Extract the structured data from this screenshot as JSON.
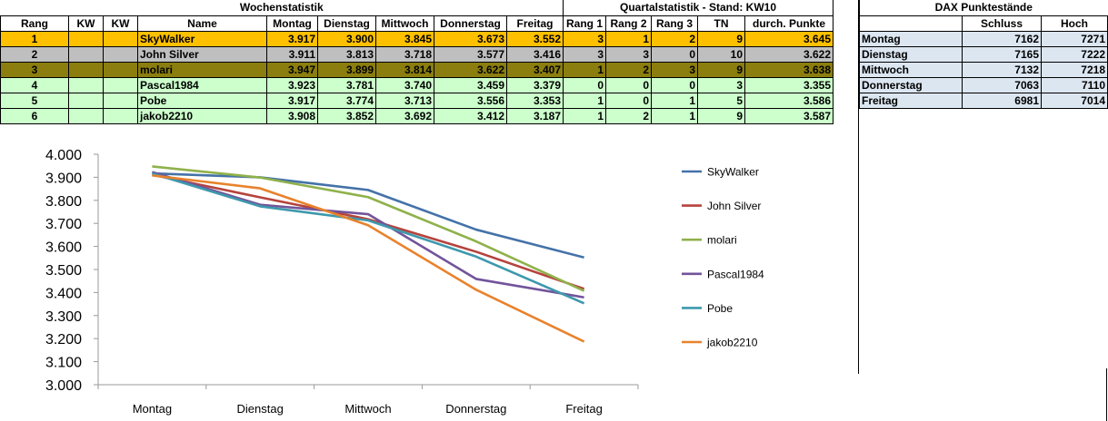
{
  "headers": {
    "weekly": "Wochenstatistik",
    "quarterly": "Quartalstatistik - Stand: KW10",
    "dax": "DAX Punktestände"
  },
  "columns": [
    "Rang",
    "KW",
    "KW",
    "Name",
    "Montag",
    "Dienstag",
    "Mittwoch",
    "Donnerstag",
    "Freitag",
    "Rang 1",
    "Rang 2",
    "Rang 3",
    "TN",
    "durch. Punkte"
  ],
  "rows": [
    {
      "rang": "1",
      "name": "SkyWalker",
      "mo": "3.917",
      "di": "3.900",
      "mi": "3.845",
      "do": "3.673",
      "fr": "3.552",
      "r1": "3",
      "r2": "1",
      "r3": "2",
      "tn": "9",
      "avg": "3.645",
      "bg": "#ffc000"
    },
    {
      "rang": "2",
      "name": "John Silver",
      "mo": "3.911",
      "di": "3.813",
      "mi": "3.718",
      "do": "3.577",
      "fr": "3.416",
      "r1": "3",
      "r2": "3",
      "r3": "0",
      "tn": "10",
      "avg": "3.622",
      "bg": "#bfbfbf"
    },
    {
      "rang": "3",
      "name": "molari",
      "mo": "3.947",
      "di": "3.899",
      "mi": "3.814",
      "do": "3.622",
      "fr": "3.407",
      "r1": "1",
      "r2": "2",
      "r3": "3",
      "tn": "9",
      "avg": "3.638",
      "bg": "#8b7e0e"
    },
    {
      "rang": "4",
      "name": "Pascal1984",
      "mo": "3.923",
      "di": "3.781",
      "mi": "3.740",
      "do": "3.459",
      "fr": "3.379",
      "r1": "0",
      "r2": "0",
      "r3": "0",
      "tn": "3",
      "avg": "3.355",
      "bg": "#ccffcc"
    },
    {
      "rang": "5",
      "name": "Pobe",
      "mo": "3.917",
      "di": "3.774",
      "mi": "3.713",
      "do": "3.556",
      "fr": "3.353",
      "r1": "1",
      "r2": "0",
      "r3": "1",
      "tn": "5",
      "avg": "3.586",
      "bg": "#ccffcc"
    },
    {
      "rang": "6",
      "name": "jakob2210",
      "mo": "3.908",
      "di": "3.852",
      "mi": "3.692",
      "do": "3.412",
      "fr": "3.187",
      "r1": "1",
      "r2": "2",
      "r3": "1",
      "tn": "9",
      "avg": "3.587",
      "bg": "#ccffcc"
    }
  ],
  "dax": {
    "columns": [
      "",
      "Schluss",
      "Hoch"
    ],
    "rows": [
      {
        "day": "Montag",
        "schluss": "7162",
        "hoch": "7271"
      },
      {
        "day": "Dienstag",
        "schluss": "7165",
        "hoch": "7222"
      },
      {
        "day": "Mittwoch",
        "schluss": "7132",
        "hoch": "7218"
      },
      {
        "day": "Donnerstag",
        "schluss": "7063",
        "hoch": "7110"
      },
      {
        "day": "Freitag",
        "schluss": "6981",
        "hoch": "7014"
      }
    ]
  },
  "chart_data": {
    "type": "line",
    "categories": [
      "Montag",
      "Dienstag",
      "Mittwoch",
      "Donnerstag",
      "Freitag"
    ],
    "ylim": [
      3.0,
      4.0
    ],
    "yticks": [
      "3.000",
      "3.100",
      "3.200",
      "3.300",
      "3.400",
      "3.500",
      "3.600",
      "3.700",
      "3.800",
      "3.900",
      "4.000"
    ],
    "legend_position": "right",
    "grid": false,
    "series": [
      {
        "name": "SkyWalker",
        "values": [
          3.917,
          3.9,
          3.845,
          3.673,
          3.552
        ],
        "color": "#4472a8"
      },
      {
        "name": "John Silver",
        "values": [
          3.911,
          3.813,
          3.718,
          3.577,
          3.416
        ],
        "color": "#b5433d"
      },
      {
        "name": "molari",
        "values": [
          3.947,
          3.899,
          3.814,
          3.622,
          3.407
        ],
        "color": "#8fb14b"
      },
      {
        "name": "Pascal1984",
        "values": [
          3.923,
          3.781,
          3.74,
          3.459,
          3.379
        ],
        "color": "#72549a"
      },
      {
        "name": "Pobe",
        "values": [
          3.917,
          3.774,
          3.713,
          3.556,
          3.353
        ],
        "color": "#3d99ad"
      },
      {
        "name": "jakob2210",
        "values": [
          3.908,
          3.852,
          3.692,
          3.412,
          3.187
        ],
        "color": "#e8822c"
      }
    ]
  }
}
